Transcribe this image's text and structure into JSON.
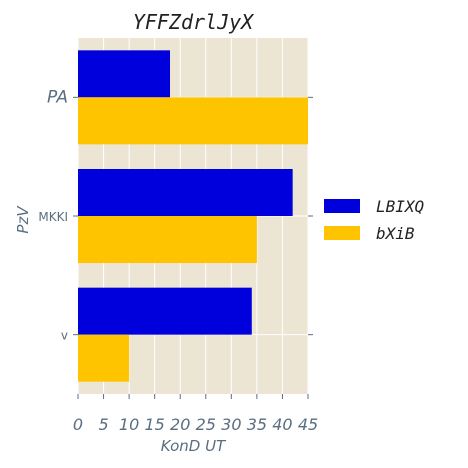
{
  "chart_data": {
    "type": "bar",
    "orientation": "horizontal",
    "title": "YFFZdrlJyX",
    "xlabel": "KonD UT",
    "ylabel": "PzV",
    "categories": [
      "PA",
      "MKKI",
      "v"
    ],
    "series": [
      {
        "name": "LBIXQ",
        "color": "#0000dd",
        "values": [
          18,
          42,
          34
        ]
      },
      {
        "name": "bXiB",
        "color": "#ffc400",
        "values": [
          45,
          35,
          10
        ]
      }
    ],
    "xlim": [
      0,
      45
    ],
    "xticks": [
      "0",
      "5",
      "10",
      "15",
      "20",
      "25",
      "30",
      "35",
      "40",
      "45"
    ],
    "grid": true,
    "legend_position": "right",
    "background_color": "#ede5d4",
    "grid_color": "#ffffff"
  }
}
